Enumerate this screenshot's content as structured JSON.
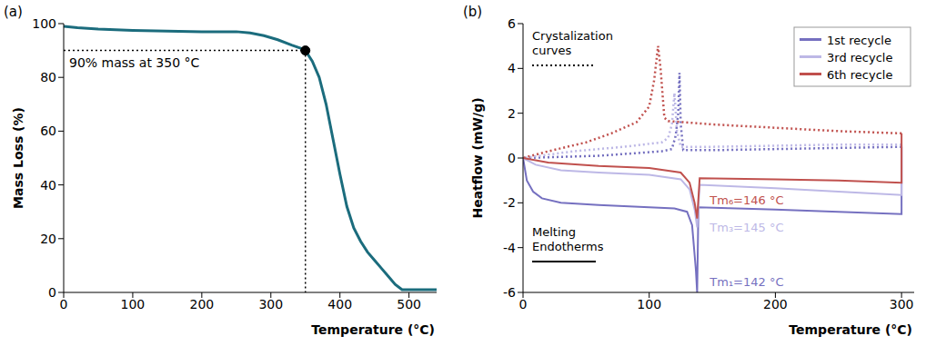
{
  "chart_data": [
    {
      "type": "line",
      "panel_label": "(a)",
      "x_label": "Temperature (°C)",
      "y_label": "Mass Loss (%)",
      "xlim": [
        0,
        540
      ],
      "xticks": [
        0,
        100,
        200,
        300,
        400,
        500
      ],
      "ylim": [
        0,
        100
      ],
      "yticks": [
        0,
        20,
        40,
        60,
        80,
        100
      ],
      "grid": false,
      "color": "#1b6c7d",
      "x": [
        0,
        20,
        50,
        100,
        150,
        200,
        250,
        270,
        290,
        310,
        330,
        345,
        350,
        360,
        370,
        380,
        390,
        400,
        410,
        420,
        430,
        440,
        450,
        460,
        470,
        480,
        490,
        500,
        520,
        540
      ],
      "values": [
        99,
        98.5,
        98,
        97.5,
        97.2,
        97,
        97,
        96.5,
        95.5,
        94,
        92,
        90.7,
        90,
        86,
        80,
        70,
        57,
        44,
        32,
        24,
        19,
        15,
        12,
        9,
        6,
        3,
        1,
        1,
        1,
        1
      ],
      "annotations": [
        {
          "text": "90% mass at 350 °C",
          "x": 350,
          "y": 90
        }
      ]
    },
    {
      "type": "line",
      "panel_label": "(b)",
      "x_label": "Temperature (°C)",
      "y_label": "Heatflow (mW/g)",
      "xlim": [
        0,
        310
      ],
      "xticks": [
        0,
        100,
        200,
        300
      ],
      "ylim": [
        -6,
        6
      ],
      "yticks": [
        -6,
        -4,
        -2,
        0,
        2,
        4,
        6
      ],
      "grid": false,
      "legend": "upper right",
      "series": [
        {
          "name": "1st recycle",
          "color": "#7570c0",
          "peak_label": "Tm₁=142 °C",
          "curves": [
            {
              "line_style": "solid",
              "x": [
                0,
                3,
                8,
                15,
                30,
                60,
                100,
                120,
                130,
                134,
                137,
                138,
                139,
                200,
                250,
                300,
                300
              ],
              "values": [
                0,
                -1.0,
                -1.5,
                -1.8,
                -2.0,
                -2.1,
                -2.2,
                -2.25,
                -2.4,
                -3.0,
                -5.0,
                -6.0,
                -2.2,
                -2.3,
                -2.4,
                -2.5,
                0.5
              ]
            },
            {
              "line_style": "dotted",
              "x": [
                300,
                250,
                200,
                150,
                127,
                125,
                124,
                123,
                121,
                118,
                110,
                60,
                0
              ],
              "values": [
                0.5,
                0.45,
                0.4,
                0.35,
                0.35,
                1.5,
                3.8,
                2.0,
                1.0,
                0.4,
                0.3,
                0.1,
                0
              ]
            }
          ]
        },
        {
          "name": "3rd recycle",
          "color": "#bdb8e6",
          "peak_label": "Tm₃=145 °C",
          "curves": [
            {
              "line_style": "solid",
              "x": [
                0,
                10,
                30,
                60,
                100,
                125,
                132,
                136,
                138,
                140,
                200,
                250,
                300,
                300
              ],
              "values": [
                0,
                -0.3,
                -0.55,
                -0.65,
                -0.75,
                -0.95,
                -1.4,
                -2.3,
                -3.1,
                -1.2,
                -1.35,
                -1.5,
                -1.65,
                0.6
              ]
            },
            {
              "line_style": "dotted",
              "x": [
                300,
                250,
                200,
                150,
                125,
                122,
                120,
                118,
                115,
                110,
                80,
                40,
                0
              ],
              "values": [
                0.6,
                0.6,
                0.55,
                0.5,
                0.5,
                1.2,
                2.9,
                1.5,
                0.9,
                0.7,
                0.5,
                0.3,
                0
              ]
            }
          ]
        },
        {
          "name": "6th recycle",
          "color": "#c0504d",
          "peak_label": "Tm₆=146 °C",
          "curves": [
            {
              "line_style": "solid",
              "x": [
                0,
                20,
                60,
                100,
                125,
                132,
                136,
                138,
                140,
                200,
                250,
                300,
                300
              ],
              "values": [
                0,
                -0.2,
                -0.35,
                -0.45,
                -0.65,
                -1.1,
                -2.0,
                -2.7,
                -0.9,
                -0.95,
                -1.0,
                -1.1,
                1.1
              ]
            },
            {
              "line_style": "dotted",
              "x": [
                300,
                250,
                200,
                150,
                115,
                112,
                109,
                107,
                104,
                100,
                90,
                70,
                50,
                20,
                0
              ],
              "values": [
                1.1,
                1.2,
                1.35,
                1.5,
                1.65,
                1.8,
                4.0,
                5.0,
                3.5,
                2.3,
                1.6,
                1.1,
                0.7,
                0.3,
                0
              ]
            }
          ]
        }
      ],
      "annotations": [
        {
          "text": "Crystalization curves",
          "line_style": "dotted"
        },
        {
          "text": "Melting Endotherms",
          "line_style": "solid"
        }
      ]
    }
  ]
}
